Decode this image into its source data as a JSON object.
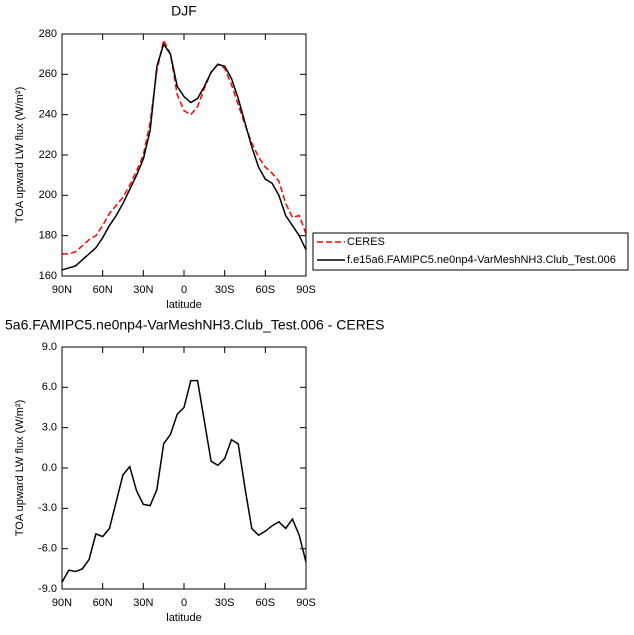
{
  "chart_data": [
    {
      "type": "line",
      "title": "DJF",
      "x_label": "latitude",
      "y_label": "TOA upward LW flux (W/m²)",
      "x": [
        90,
        85,
        80,
        75,
        70,
        65,
        60,
        55,
        50,
        45,
        40,
        35,
        30,
        25,
        20,
        15,
        10,
        5,
        0,
        -5,
        -10,
        -15,
        -20,
        -25,
        -30,
        -35,
        -40,
        -45,
        -50,
        -55,
        -60,
        -65,
        -70,
        -75,
        -80,
        -85,
        -90
      ],
      "xlim": [
        90,
        -90
      ],
      "xticks": [
        {
          "value": 90,
          "label": "90N"
        },
        {
          "value": 60,
          "label": "60N"
        },
        {
          "value": 30,
          "label": "30N"
        },
        0,
        {
          "value": -30,
          "label": "30S"
        },
        {
          "value": -60,
          "label": "60S"
        },
        {
          "value": -90,
          "label": "90S"
        }
      ],
      "ylim": [
        160,
        280
      ],
      "yticks": [
        160,
        180,
        200,
        220,
        240,
        260,
        280
      ],
      "legend": "outside-right",
      "series": [
        {
          "name": "CERES",
          "color": "#ff0000",
          "style": "dashed",
          "values": [
            171,
            171,
            172,
            175,
            178,
            180,
            185,
            191,
            195,
            199,
            205,
            212,
            220,
            236,
            262,
            277,
            270,
            250,
            242,
            240,
            244,
            253,
            261,
            265,
            263,
            255,
            245,
            235,
            226,
            219,
            214,
            211,
            207,
            196,
            189,
            190,
            181
          ]
        },
        {
          "name": "f.e15a6.FAMIPC5.ne0np4-VarMeshNH3.Club_Test.006",
          "color": "#000000",
          "style": "solid",
          "values": [
            163,
            164,
            165,
            168,
            171,
            174,
            179,
            185,
            190,
            196,
            203,
            210,
            218,
            232,
            264,
            275,
            270,
            254,
            249,
            246,
            248,
            254,
            261,
            265,
            264,
            258,
            248,
            236,
            224,
            214,
            208,
            206,
            200,
            190,
            185,
            180,
            173
          ]
        }
      ]
    },
    {
      "type": "line",
      "title": "5a6.FAMIPC5.ne0np4-VarMeshNH3.Club_Test.006 - CERES",
      "x_label": "latitude",
      "y_label": "TOA upward LW flux (W/m²)",
      "x": [
        90,
        85,
        80,
        75,
        70,
        65,
        60,
        55,
        50,
        45,
        40,
        35,
        30,
        25,
        20,
        15,
        10,
        5,
        0,
        -5,
        -10,
        -15,
        -20,
        -25,
        -30,
        -35,
        -40,
        -45,
        -50,
        -55,
        -60,
        -65,
        -70,
        -75,
        -80,
        -85,
        -90
      ],
      "xlim": [
        90,
        -90
      ],
      "xticks": [
        {
          "value": 90,
          "label": "90N"
        },
        {
          "value": 60,
          "label": "60N"
        },
        {
          "value": 30,
          "label": "30N"
        },
        0,
        {
          "value": -30,
          "label": "30S"
        },
        {
          "value": -60,
          "label": "60S"
        },
        {
          "value": -90,
          "label": "90S"
        }
      ],
      "ylim": [
        -9,
        9
      ],
      "yticks": [
        {
          "value": -9,
          "label": "-9.0"
        },
        {
          "value": -6,
          "label": "-6.0"
        },
        {
          "value": -3,
          "label": "-3.0"
        },
        {
          "value": 0,
          "label": "0.0"
        },
        {
          "value": 3,
          "label": "3.0"
        },
        {
          "value": 6,
          "label": "6.0"
        },
        {
          "value": 9,
          "label": "9.0"
        }
      ],
      "series": [
        {
          "color": "#000000",
          "style": "solid",
          "values": [
            -8.5,
            -7.6,
            -7.7,
            -7.5,
            -6.8,
            -4.9,
            -5.1,
            -4.5,
            -2.5,
            -0.5,
            0.1,
            -1.7,
            -2.7,
            -2.8,
            -1.6,
            1.8,
            2.5,
            4.0,
            4.5,
            6.5,
            6.5,
            3.5,
            0.5,
            0.2,
            0.7,
            2.1,
            1.8,
            -1.5,
            -4.5,
            -5.0,
            -4.7,
            -4.3,
            -4.0,
            -4.5,
            -3.8,
            -5.0,
            -7.0
          ]
        }
      ]
    }
  ]
}
